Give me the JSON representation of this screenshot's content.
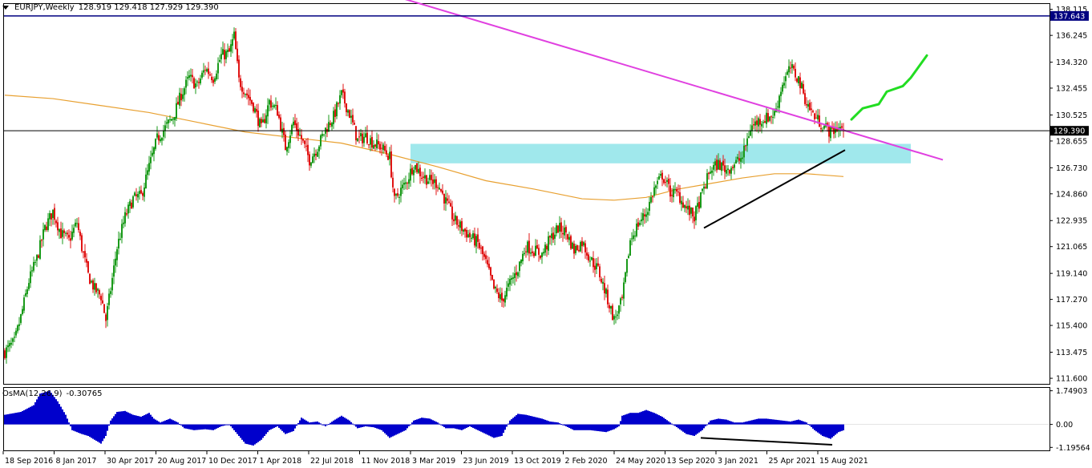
{
  "header": {
    "symbol": "EURJPY,Weekly",
    "ohlc": "128.919 129.418 127.929 129.390"
  },
  "indicator": {
    "name": "OsMA(12,26,9)",
    "value": "-0.30765"
  },
  "chart_data": [
    {
      "type": "candlestick",
      "symbol": "EURJPY",
      "timeframe": "Weekly",
      "ylim": [
        111.2,
        138.5
      ],
      "y_ticks": [
        "138.115",
        "136.245",
        "134.320",
        "132.455",
        "130.525",
        "128.655",
        "126.730",
        "124.860",
        "122.935",
        "121.065",
        "119.140",
        "117.270",
        "115.400",
        "113.475",
        "111.600"
      ],
      "x_ticks": [
        "18 Sep 2016",
        "8 Jan 2017",
        "30 Apr 2017",
        "20 Aug 2017",
        "10 Dec 2017",
        "1 Apr 2018",
        "22 Jul 2018",
        "11 Nov 2018",
        "3 Mar 2019",
        "23 Jun 2019",
        "13 Oct 2019",
        "2 Feb 2020",
        "24 May 2020",
        "13 Sep 2020",
        "3 Jan 2021",
        "25 Apr 2021",
        "15 Aug 2021"
      ],
      "price_labels": [
        {
          "value": 137.643,
          "text": "137.643",
          "style": "navy"
        },
        {
          "value": 129.39,
          "text": "129.390",
          "style": "black"
        }
      ],
      "close_path": [
        [
          0,
          113.5
        ],
        [
          6,
          114.2
        ],
        [
          10,
          116
        ],
        [
          15,
          118.6
        ],
        [
          20,
          120.2
        ],
        [
          25,
          122.4
        ],
        [
          30,
          123.6
        ],
        [
          35,
          122
        ],
        [
          40,
          121.5
        ],
        [
          45,
          122.8
        ],
        [
          48,
          121
        ],
        [
          52,
          119
        ],
        [
          56,
          118
        ],
        [
          60,
          117.5
        ],
        [
          63,
          115.8
        ],
        [
          66,
          118
        ],
        [
          70,
          121
        ],
        [
          75,
          123.2
        ],
        [
          80,
          124.5
        ],
        [
          85,
          124.7
        ],
        [
          90,
          126.8
        ],
        [
          95,
          128.8
        ],
        [
          100,
          129.6
        ],
        [
          105,
          130.4
        ],
        [
          110,
          132
        ],
        [
          115,
          133.2
        ],
        [
          120,
          132.6
        ],
        [
          125,
          133.9
        ],
        [
          130,
          133.2
        ],
        [
          135,
          134.8
        ],
        [
          140,
          135
        ],
        [
          143,
          136.2
        ],
        [
          146,
          133
        ],
        [
          150,
          132.2
        ],
        [
          155,
          131.2
        ],
        [
          160,
          129.5
        ],
        [
          165,
          131.5
        ],
        [
          170,
          130.8
        ],
        [
          175,
          128.2
        ],
        [
          180,
          130
        ],
        [
          185,
          128.8
        ],
        [
          190,
          127.3
        ],
        [
          195,
          128.2
        ],
        [
          200,
          129.5
        ],
        [
          205,
          130.4
        ],
        [
          210,
          132
        ],
        [
          215,
          130.6
        ],
        [
          220,
          128.7
        ],
        [
          225,
          129
        ],
        [
          230,
          128.5
        ],
        [
          235,
          128.2
        ],
        [
          240,
          127.5
        ],
        [
          243,
          124.3
        ],
        [
          246,
          125
        ],
        [
          250,
          125.6
        ],
        [
          255,
          127
        ],
        [
          260,
          126.2
        ],
        [
          265,
          125.8
        ],
        [
          270,
          125.6
        ],
        [
          275,
          124.3
        ],
        [
          280,
          123
        ],
        [
          285,
          122.4
        ],
        [
          290,
          121.8
        ],
        [
          295,
          121.3
        ],
        [
          300,
          119.9
        ],
        [
          305,
          118
        ],
        [
          310,
          117.2
        ],
        [
          315,
          118.4
        ],
        [
          320,
          119.5
        ],
        [
          325,
          121.1
        ],
        [
          330,
          120.8
        ],
        [
          335,
          120.5
        ],
        [
          340,
          121.6
        ],
        [
          345,
          122.4
        ],
        [
          350,
          122.1
        ],
        [
          355,
          120.8
        ],
        [
          360,
          121.4
        ],
        [
          365,
          120.2
        ],
        [
          370,
          119.4
        ],
        [
          375,
          117.6
        ],
        [
          380,
          115.8
        ],
        [
          385,
          117.2
        ],
        [
          390,
          121.5
        ],
        [
          395,
          122.7
        ],
        [
          400,
          123.5
        ],
        [
          405,
          125.2
        ],
        [
          410,
          126.2
        ],
        [
          415,
          125
        ],
        [
          420,
          124.8
        ],
        [
          425,
          123.8
        ],
        [
          430,
          123.2
        ],
        [
          435,
          124.9
        ],
        [
          440,
          126.6
        ],
        [
          445,
          127
        ],
        [
          450,
          126.6
        ],
        [
          455,
          127
        ],
        [
          460,
          127.5
        ],
        [
          465,
          129.6
        ],
        [
          470,
          130.1
        ],
        [
          475,
          130.3
        ],
        [
          480,
          130.6
        ],
        [
          485,
          132.8
        ],
        [
          490,
          133.9
        ],
        [
          495,
          133.1
        ],
        [
          500,
          131.4
        ],
        [
          505,
          130.4
        ],
        [
          510,
          129.8
        ],
        [
          515,
          129.3
        ],
        [
          520,
          129.7
        ],
        [
          523,
          129.39
        ]
      ],
      "overlays": [
        {
          "type": "trendline",
          "color": "#e040e0",
          "from": [
            187,
            141.0
          ],
          "to": [
            585,
            127.3
          ]
        },
        {
          "type": "trendline",
          "color": "#000000",
          "from": [
            436,
            122.4
          ],
          "to": [
            524,
            128.0
          ]
        },
        {
          "type": "zone",
          "color": "#a0e8ec",
          "from_x": 253,
          "to_x": 565,
          "y_range": [
            127.05,
            128.45
          ]
        },
        {
          "type": "moving_average",
          "color": "#e8a030",
          "points": [
            [
              0,
              131.95
            ],
            [
              30,
              131.7
            ],
            [
              60,
              131.2
            ],
            [
              90,
              130.7
            ],
            [
              120,
              130.0
            ],
            [
              150,
              129.3
            ],
            [
              180,
              128.9
            ],
            [
              210,
              128.5
            ],
            [
              240,
              127.7
            ],
            [
              270,
              126.8
            ],
            [
              300,
              125.8
            ],
            [
              330,
              125.2
            ],
            [
              360,
              124.5
            ],
            [
              380,
              124.4
            ],
            [
              400,
              124.6
            ],
            [
              420,
              125.2
            ],
            [
              440,
              125.6
            ],
            [
              460,
              126.0
            ],
            [
              480,
              126.3
            ],
            [
              500,
              126.3
            ],
            [
              523,
              126.1
            ]
          ]
        },
        {
          "type": "projection",
          "color": "#22dd22",
          "points": [
            [
              528,
              130.2
            ],
            [
              535,
              131.0
            ],
            [
              545,
              131.3
            ],
            [
              550,
              132.2
            ],
            [
              560,
              132.6
            ],
            [
              565,
              133.2
            ],
            [
              570,
              134.0
            ],
            [
              575,
              134.8
            ]
          ]
        }
      ]
    },
    {
      "type": "histogram",
      "name": "OsMA(12,26,9)",
      "ylim": [
        -1.35,
        1.9
      ],
      "y_ticks": [
        "1.74903",
        "0.00",
        "-1.19564"
      ],
      "values_path": [
        [
          0,
          0.5
        ],
        [
          10,
          0.65
        ],
        [
          18,
          1.0
        ],
        [
          22,
          1.6
        ],
        [
          28,
          1.75
        ],
        [
          33,
          1.2
        ],
        [
          38,
          0.5
        ],
        [
          42,
          -0.3
        ],
        [
          48,
          -0.5
        ],
        [
          52,
          -0.6
        ],
        [
          56,
          -0.8
        ],
        [
          60,
          -1.0
        ],
        [
          63,
          -0.6
        ],
        [
          66,
          0.2
        ],
        [
          70,
          0.65
        ],
        [
          75,
          0.7
        ],
        [
          80,
          0.5
        ],
        [
          85,
          0.4
        ],
        [
          90,
          0.6
        ],
        [
          93,
          0.3
        ],
        [
          97,
          0.1
        ],
        [
          103,
          0.3
        ],
        [
          108,
          0.1
        ],
        [
          112,
          -0.2
        ],
        [
          118,
          -0.3
        ],
        [
          125,
          -0.25
        ],
        [
          130,
          -0.3
        ],
        [
          135,
          -0.1
        ],
        [
          140,
          0.0
        ],
        [
          145,
          -0.5
        ],
        [
          150,
          -1.0
        ],
        [
          155,
          -1.1
        ],
        [
          160,
          -0.8
        ],
        [
          165,
          -0.3
        ],
        [
          170,
          -0.1
        ],
        [
          175,
          -0.5
        ],
        [
          180,
          -0.35
        ],
        [
          185,
          0.35
        ],
        [
          190,
          0.1
        ],
        [
          195,
          0.15
        ],
        [
          200,
          -0.1
        ],
        [
          205,
          0.2
        ],
        [
          210,
          0.45
        ],
        [
          215,
          0.2
        ],
        [
          220,
          -0.2
        ],
        [
          225,
          -0.1
        ],
        [
          230,
          -0.15
        ],
        [
          235,
          -0.3
        ],
        [
          240,
          -0.7
        ],
        [
          245,
          -0.5
        ],
        [
          250,
          -0.3
        ],
        [
          255,
          0.2
        ],
        [
          260,
          0.35
        ],
        [
          265,
          0.3
        ],
        [
          270,
          0.1
        ],
        [
          275,
          -0.2
        ],
        [
          280,
          -0.2
        ],
        [
          285,
          -0.3
        ],
        [
          290,
          -0.1
        ],
        [
          295,
          -0.3
        ],
        [
          300,
          -0.5
        ],
        [
          305,
          -0.7
        ],
        [
          310,
          -0.6
        ],
        [
          315,
          0.2
        ],
        [
          320,
          0.55
        ],
        [
          325,
          0.5
        ],
        [
          330,
          0.4
        ],
        [
          335,
          0.3
        ],
        [
          340,
          0.15
        ],
        [
          345,
          0.1
        ],
        [
          350,
          -0.1
        ],
        [
          355,
          -0.3
        ],
        [
          360,
          -0.3
        ],
        [
          365,
          -0.3
        ],
        [
          370,
          -0.35
        ],
        [
          375,
          -0.4
        ],
        [
          380,
          -0.25
        ],
        [
          383,
          -0.1
        ],
        [
          385,
          0.45
        ],
        [
          390,
          0.6
        ],
        [
          395,
          0.6
        ],
        [
          400,
          0.75
        ],
        [
          405,
          0.6
        ],
        [
          410,
          0.4
        ],
        [
          415,
          0.1
        ],
        [
          420,
          -0.2
        ],
        [
          425,
          -0.5
        ],
        [
          430,
          -0.6
        ],
        [
          435,
          -0.3
        ],
        [
          440,
          0.2
        ],
        [
          445,
          0.3
        ],
        [
          450,
          0.25
        ],
        [
          455,
          0.1
        ],
        [
          460,
          0.1
        ],
        [
          465,
          0.2
        ],
        [
          470,
          0.3
        ],
        [
          475,
          0.3
        ],
        [
          480,
          0.25
        ],
        [
          485,
          0.2
        ],
        [
          490,
          0.15
        ],
        [
          495,
          0.25
        ],
        [
          500,
          0.1
        ],
        [
          505,
          -0.3
        ],
        [
          510,
          -0.6
        ],
        [
          515,
          -0.75
        ],
        [
          520,
          -0.4
        ],
        [
          523,
          -0.31
        ]
      ],
      "overlays": [
        {
          "type": "trendline",
          "color": "#000000",
          "from": [
            434,
            -0.7
          ],
          "to": [
            516,
            -1.06
          ]
        }
      ]
    }
  ]
}
